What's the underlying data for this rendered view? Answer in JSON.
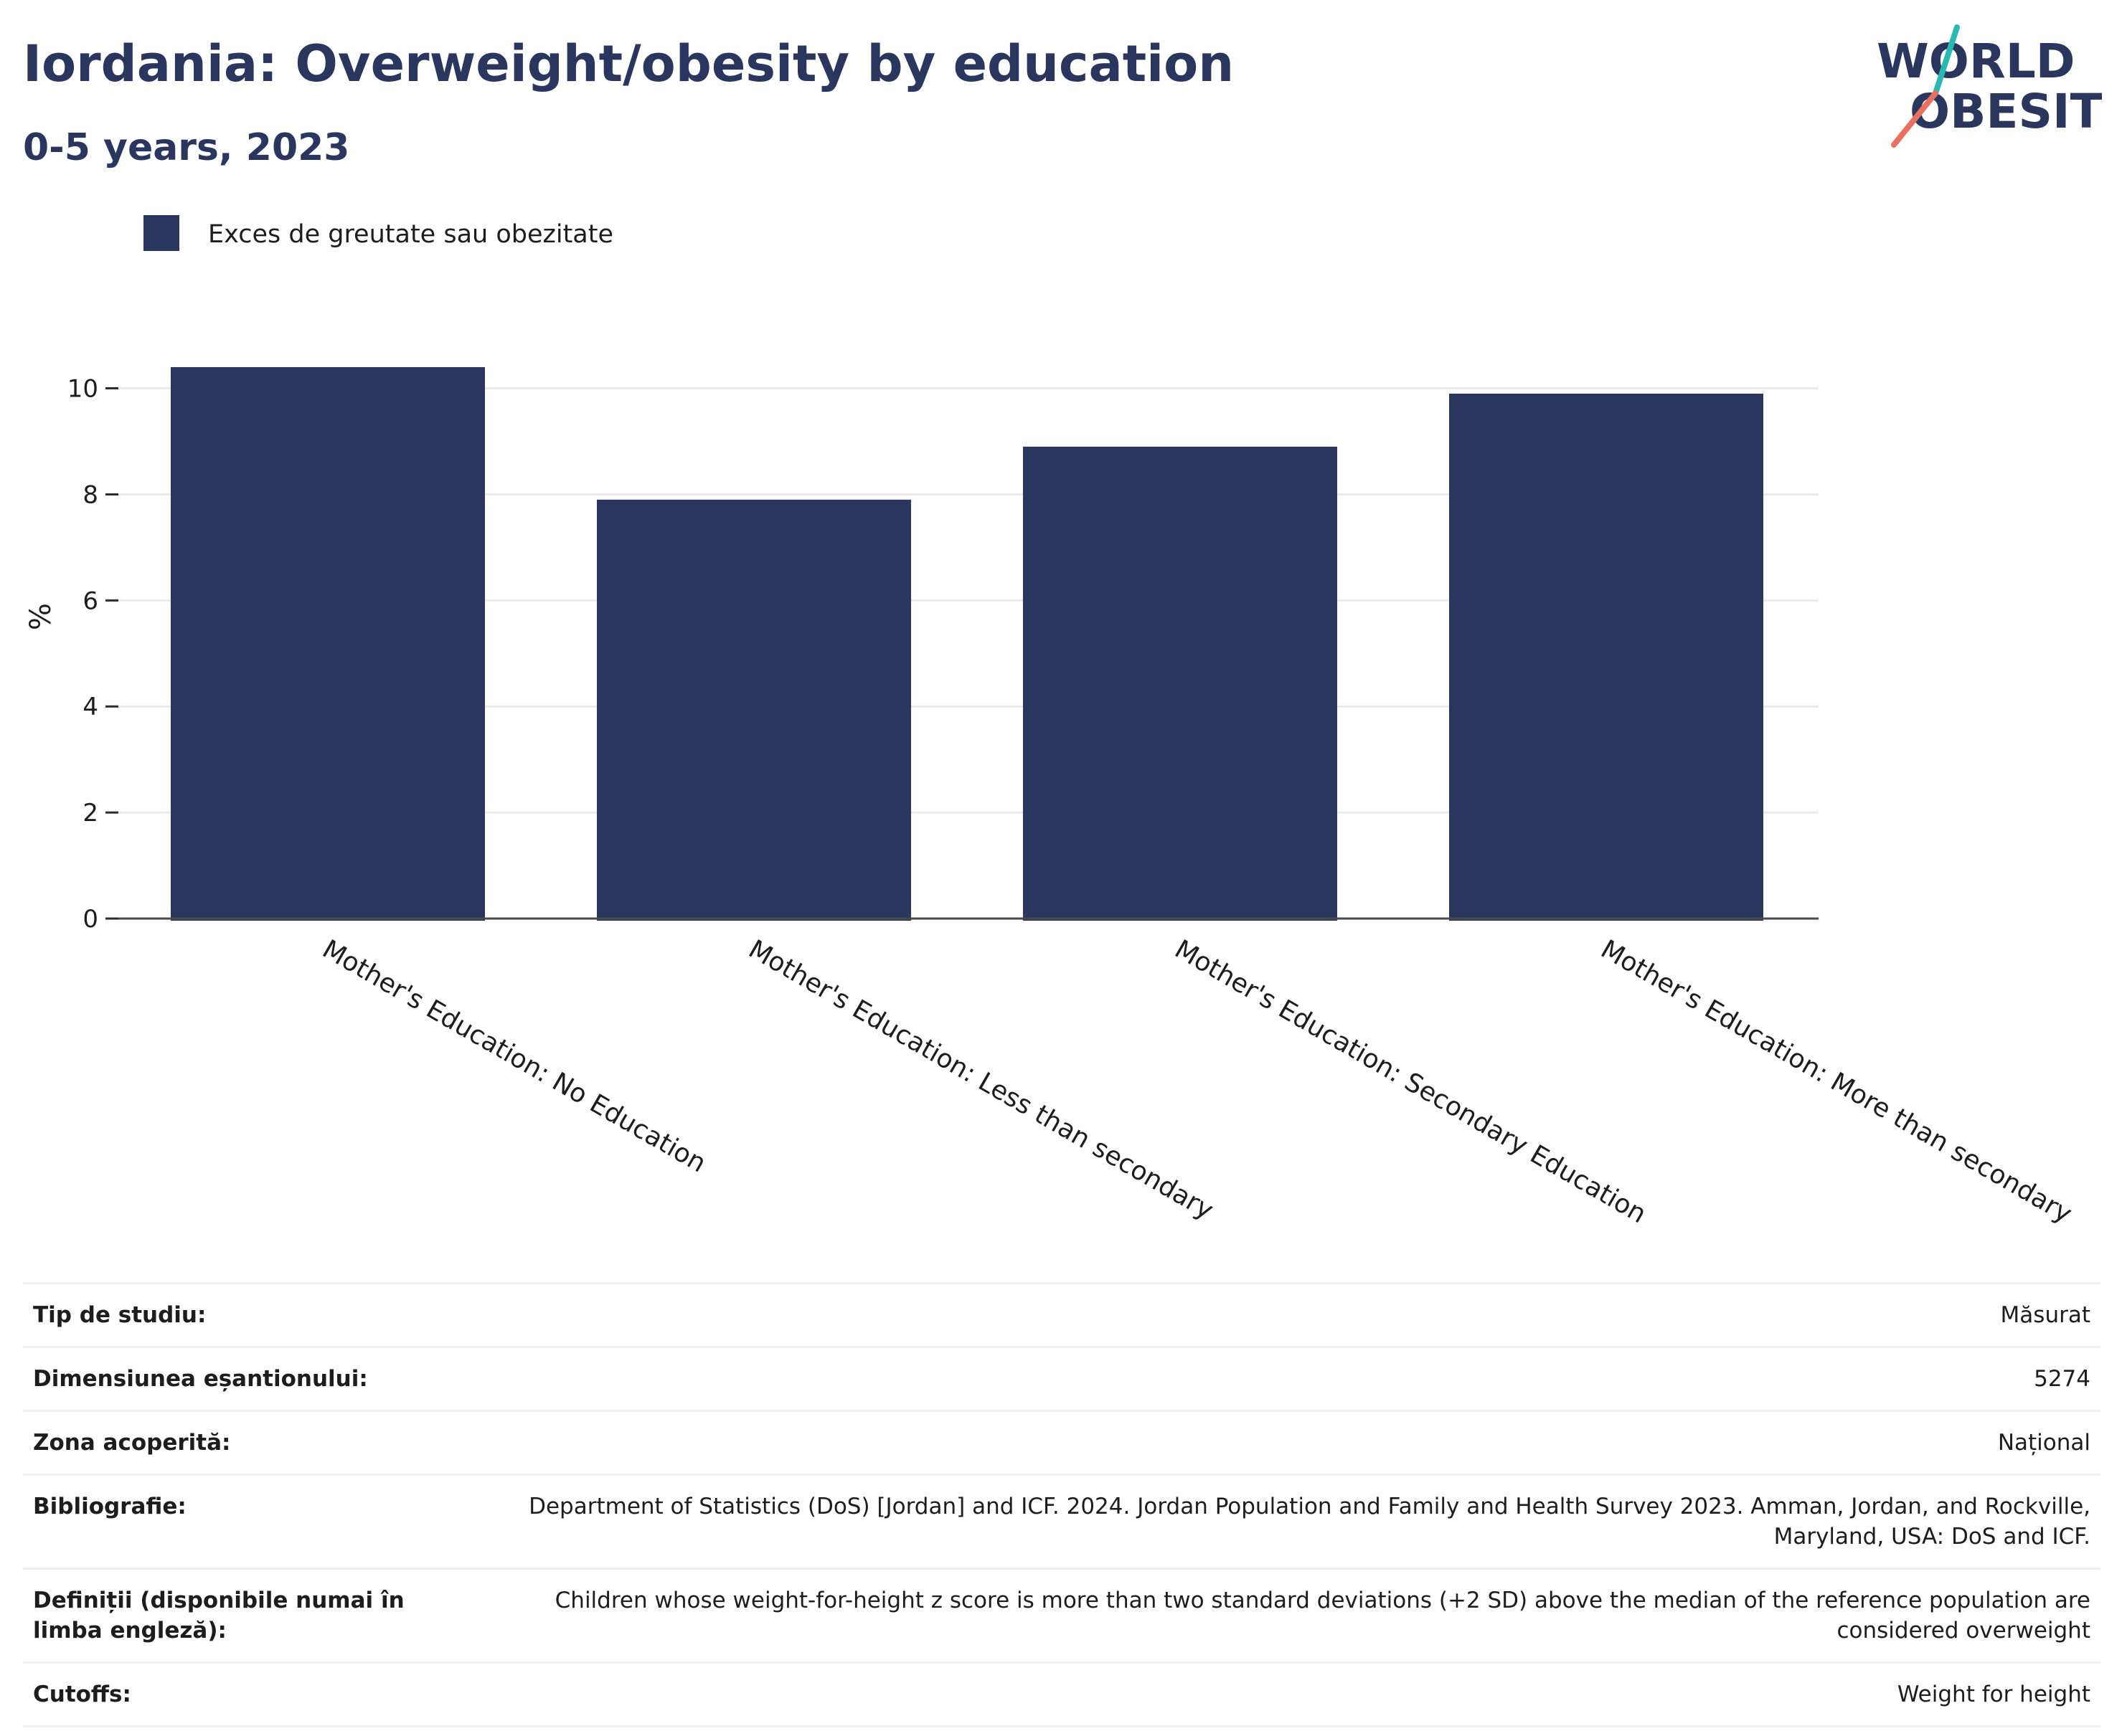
{
  "header": {
    "title": "Iordania: Overweight/obesity by education",
    "subtitle": "0-5 years, 2023"
  },
  "logo": {
    "line1": "WORLD",
    "line2": "OBESITY",
    "colors": {
      "text": "#2b365f",
      "teal": "#2bb8b2",
      "coral": "#e8705f"
    }
  },
  "chart_data": {
    "type": "bar",
    "categories": [
      "Mother's Education: No Education",
      "Mother's Education: Less than secondary",
      "Mother's Education: Secondary Education",
      "Mother's Education:  More than secondary"
    ],
    "series": [
      {
        "name": "Exces de greutate sau obezitate",
        "color": "#2b365f",
        "values": [
          10.4,
          7.9,
          8.9,
          9.9
        ]
      }
    ],
    "ylabel": "%",
    "ylim": [
      0,
      10.9
    ],
    "yticks": [
      0,
      2,
      4,
      6,
      8,
      10
    ],
    "grid": true,
    "legend_position": "top-left"
  },
  "meta": {
    "rows": [
      {
        "key": "Tip de studiu:",
        "value": "Măsurat"
      },
      {
        "key": "Dimensiunea eșantionului:",
        "value": "5274"
      },
      {
        "key": "Zona acoperită:",
        "value": "Național"
      },
      {
        "key": "Bibliografie:",
        "value": "Department of Statistics (DoS) [Jordan] and ICF. 2024. Jordan Population and Family and Health Survey 2023. Amman, Jordan, and Rockville, Maryland, USA: DoS and ICF."
      },
      {
        "key": "Definiții (disponibile numai în limba engleză):",
        "value": "Children whose weight-for-height z score is more than two standard deviations (+2 SD) above the median of the reference population are considered overweight"
      },
      {
        "key": "Cutoffs:",
        "value": "Weight for height"
      }
    ]
  }
}
